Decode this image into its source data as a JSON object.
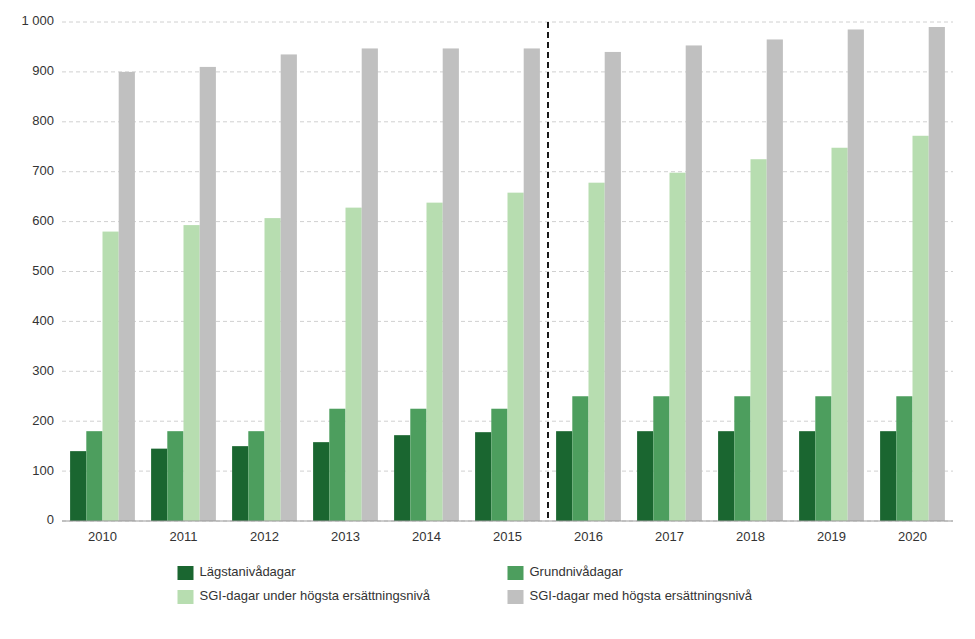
{
  "chart_data": {
    "type": "bar",
    "categories": [
      2010,
      2011,
      2012,
      2013,
      2014,
      2015,
      2016,
      2017,
      2018,
      2019,
      2020
    ],
    "series": [
      {
        "name": "Lägstanivådagar",
        "color": "#1a6630",
        "values": [
          140,
          145,
          150,
          158,
          172,
          178,
          180,
          180,
          180,
          180,
          180
        ]
      },
      {
        "name": "Grundnivådagar",
        "color": "#4d9e5e",
        "values": [
          180,
          180,
          180,
          225,
          225,
          225,
          250,
          250,
          250,
          250,
          250
        ]
      },
      {
        "name": "SGI-dagar under högsta ersättningsnivå",
        "color": "#b7ddb0",
        "values": [
          580,
          593,
          607,
          628,
          638,
          658,
          678,
          698,
          725,
          748,
          772
        ]
      },
      {
        "name": "SGI-dagar med högsta ersättningsnivå",
        "color": "#c0c0c0",
        "values": [
          900,
          910,
          935,
          947,
          947,
          947,
          940,
          953,
          965,
          985,
          990
        ]
      }
    ],
    "ylim": [
      0,
      1000
    ],
    "yticks": [
      0,
      100,
      200,
      300,
      400,
      500,
      600,
      700,
      800,
      900,
      {
        "value": 1000,
        "label": "1 000"
      }
    ],
    "grid": true,
    "legend": "bottom"
  }
}
